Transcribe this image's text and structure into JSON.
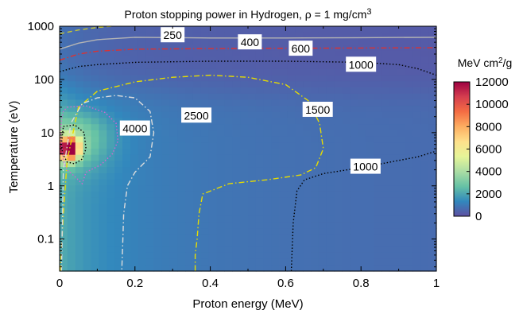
{
  "chart_data": {
    "type": "heatmap",
    "title": "Proton stopping power in Hydrogen, ρ = 1 mg/cm",
    "title_superscript": "3",
    "xlabel": "Proton energy (MeV)",
    "ylabel": "Temperature (eV)",
    "x_scale": "linear",
    "y_scale": "log",
    "xlim": [
      0,
      1
    ],
    "ylim": [
      0.025,
      1000
    ],
    "x_ticks": [
      0,
      0.2,
      0.4,
      0.6,
      0.8,
      1
    ],
    "x_tick_labels": [
      "0",
      "0.2",
      "0.4",
      "0.6",
      "0.8",
      "1"
    ],
    "y_ticks": [
      0.1,
      1,
      10,
      100,
      1000
    ],
    "y_tick_labels": [
      "0.1",
      "1",
      "10",
      "100",
      "1000"
    ],
    "colorbar": {
      "label": "MeV cm",
      "label_superscript": "2",
      "label_suffix": "/g",
      "range": [
        0,
        12000
      ],
      "ticks": [
        0,
        2000,
        4000,
        6000,
        8000,
        10000,
        12000
      ],
      "tick_labels": [
        "0",
        "2000",
        "4000",
        "6000",
        "8000",
        "10000",
        "12000"
      ],
      "colormap": [
        "#5e4fa2",
        "#3288bd",
        "#66c2a5",
        "#abdda4",
        "#e6f598",
        "#fee08b",
        "#fdae61",
        "#f46d43",
        "#d53e4f",
        "#9e0142"
      ]
    },
    "peak": {
      "x": 0.025,
      "y": 5,
      "value": 12000
    },
    "contours": [
      {
        "level": 250,
        "label": "250",
        "color": "#c8c832",
        "style": "dashed",
        "x": [
          0,
          0.05,
          0.1,
          0.14
        ],
        "y": [
          720,
          850,
          950,
          1000
        ],
        "label_at": {
          "x": 0.3,
          "y": 680
        }
      },
      {
        "level": 400,
        "label": "400",
        "color": "#b4b4b4",
        "style": "solid",
        "x": [
          0,
          0.05,
          0.1,
          0.2,
          0.4,
          0.6,
          0.8,
          1
        ],
        "y": [
          370,
          480,
          560,
          620,
          600,
          600,
          610,
          620
        ],
        "label_at": {
          "x": 0.505,
          "y": 500
        }
      },
      {
        "level": 600,
        "label": "600",
        "color": "#dc3232",
        "style": "dashdot",
        "x": [
          0,
          0.05,
          0.1,
          0.2,
          0.4,
          0.6,
          0.8,
          1
        ],
        "y": [
          230,
          300,
          340,
          370,
          380,
          385,
          390,
          395
        ],
        "label_at": {
          "x": 0.64,
          "y": 380
        }
      },
      {
        "level": 1000,
        "label": "1000",
        "color": "#000000",
        "style": "dotted",
        "x": [
          0,
          0.05,
          0.1,
          0.2,
          0.4,
          0.6,
          0.8,
          0.9,
          0.95,
          1
        ],
        "y": [
          140,
          175,
          190,
          210,
          220,
          220,
          210,
          190,
          160,
          120
        ],
        "label_at": {
          "x": 0.8,
          "y": 190
        }
      },
      {
        "level": 1500,
        "label": "1500",
        "color": "#e6dc00",
        "style": "dashdot",
        "x": [
          0.002,
          0.01,
          0.02,
          0.05,
          0.1,
          0.2,
          0.3,
          0.4,
          0.5,
          0.6,
          0.66,
          0.69,
          0.7,
          0.68,
          0.64,
          0.55,
          0.45,
          0.38,
          0.37,
          0.365,
          0.36,
          0.36
        ],
        "y": [
          0.025,
          0.3,
          3,
          30,
          60,
          90,
          110,
          120,
          110,
          80,
          40,
          15,
          5,
          2.2,
          1.6,
          1.3,
          1.1,
          0.7,
          0.3,
          0.1,
          0.05,
          0.025
        ],
        "label_at": {
          "x": 0.685,
          "y": 27
        }
      },
      {
        "level": 2500,
        "label": "2500",
        "color": "#dcdcdc",
        "style": "dashdot",
        "x": [
          0.005,
          0.01,
          0.03,
          0.06,
          0.1,
          0.15,
          0.2,
          0.24,
          0.25,
          0.24,
          0.2,
          0.18,
          0.17,
          0.168,
          0.165
        ],
        "y": [
          0.025,
          2,
          15,
          35,
          45,
          50,
          45,
          25,
          10,
          3.5,
          1.8,
          1.0,
          0.3,
          0.1,
          0.025
        ],
        "label_at": {
          "x": 0.363,
          "y": 21
        }
      },
      {
        "level": 4000,
        "label": "4000",
        "color": "#d264d2",
        "style": "dotted",
        "x": [
          0.02,
          0.07,
          0.12,
          0.15,
          0.155,
          0.14,
          0.11,
          0.07,
          0.06,
          0.04,
          0.02,
          0.01,
          0.005,
          0.003,
          0.005,
          0.01,
          0.02
        ],
        "y": [
          30,
          32,
          24,
          15,
          7,
          4,
          2.5,
          1.8,
          1.1,
          1.5,
          2,
          3,
          6,
          10,
          18,
          25,
          30
        ],
        "label_at": {
          "x": 0.2,
          "y": 12
        }
      },
      {
        "level": 6000,
        "label": "",
        "color": "#000000",
        "style": "dotted",
        "x": [
          0.01,
          0.04,
          0.065,
          0.07,
          0.06,
          0.04,
          0.02,
          0.008,
          0.005,
          0.008,
          0.01
        ],
        "y": [
          13,
          14,
          10,
          5,
          3.2,
          2.6,
          2.8,
          4,
          6,
          10,
          13
        ],
        "label_at": null
      },
      {
        "level": 1000,
        "label": "1000",
        "color": "#000000",
        "style": "dotted",
        "x": [
          0.615,
          0.62,
          0.63,
          0.65,
          0.7,
          0.8,
          0.9,
          0.95,
          1
        ],
        "y": [
          0.025,
          0.2,
          0.8,
          1.3,
          1.7,
          2.2,
          3,
          3.5,
          4.5
        ],
        "label_at": {
          "x": 0.812,
          "y": 2.3
        }
      }
    ]
  }
}
